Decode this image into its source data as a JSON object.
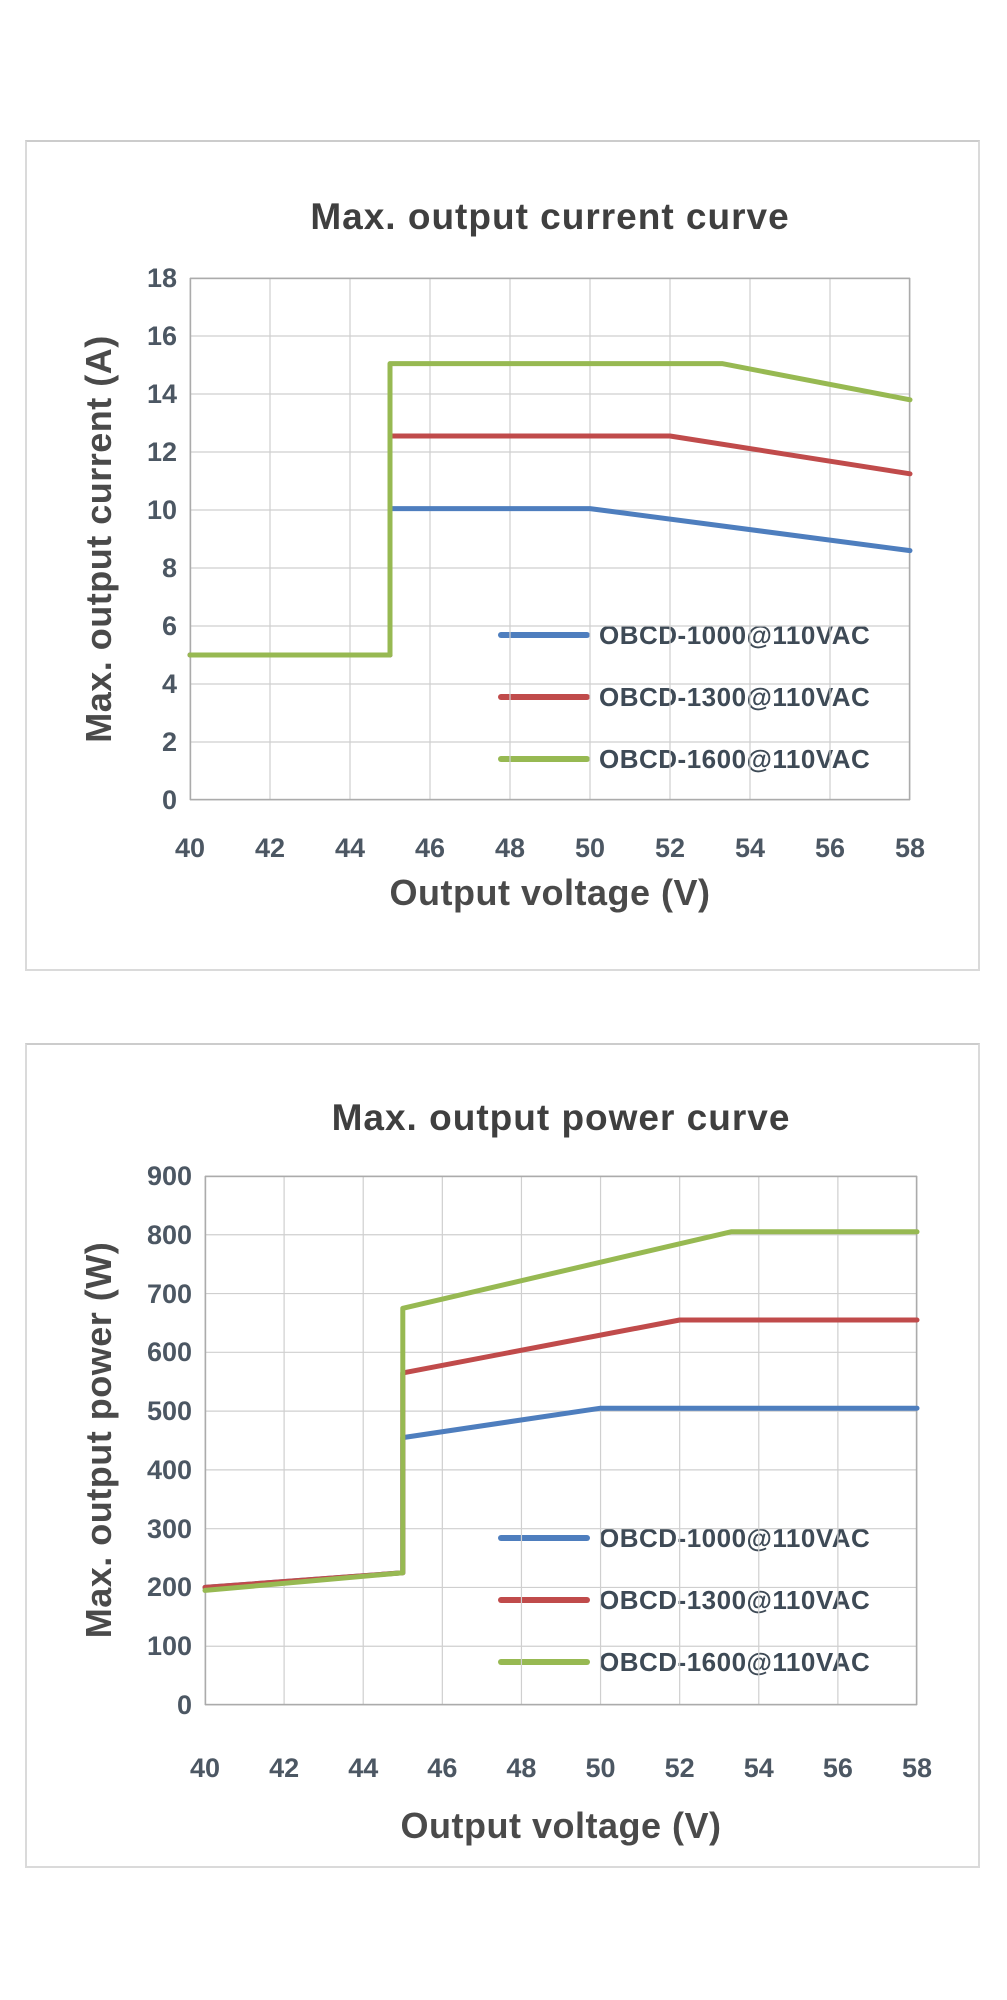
{
  "style": {
    "grid_color": "#cfcfcf",
    "plot_border_color": "#ababab",
    "series_blue": "#4E7EBE",
    "series_red": "#C04B4B",
    "series_green": "#97B952"
  },
  "chart_data": [
    {
      "type": "line",
      "title": "Max. output current curve",
      "x_axis_title": "Output voltage (V)",
      "y_axis_title": "Max. output current (A)",
      "xlim": [
        40,
        58
      ],
      "ylim": [
        0,
        18
      ],
      "x_ticks": [
        40,
        42,
        44,
        46,
        48,
        50,
        52,
        54,
        56,
        58
      ],
      "y_ticks": [
        0,
        2,
        4,
        6,
        8,
        10,
        12,
        14,
        16,
        18
      ],
      "grid": true,
      "legend_position": "inside-lower-right",
      "series": [
        {
          "name": "OBCD-1000@110VAC",
          "color": "#4E7EBE",
          "points": [
            [
              40,
              5
            ],
            [
              45,
              5
            ],
            [
              45,
              10.05
            ],
            [
              50,
              10.05
            ],
            [
              58,
              8.6
            ]
          ]
        },
        {
          "name": "OBCD-1300@110VAC",
          "color": "#C04B4B",
          "points": [
            [
              40,
              5
            ],
            [
              45,
              5
            ],
            [
              45,
              12.55
            ],
            [
              52,
              12.55
            ],
            [
              58,
              11.25
            ]
          ]
        },
        {
          "name": "OBCD-1600@110VAC",
          "color": "#97B952",
          "points": [
            [
              40,
              5
            ],
            [
              45,
              5
            ],
            [
              45,
              15.05
            ],
            [
              53.3,
              15.05
            ],
            [
              58,
              13.8
            ]
          ]
        }
      ]
    },
    {
      "type": "line",
      "title": "Max. output power curve",
      "x_axis_title": "Output voltage (V)",
      "y_axis_title": "Max. output power (W)",
      "xlim": [
        40,
        58
      ],
      "ylim": [
        0,
        900
      ],
      "x_ticks": [
        40,
        42,
        44,
        46,
        48,
        50,
        52,
        54,
        56,
        58
      ],
      "y_ticks": [
        0,
        100,
        200,
        300,
        400,
        500,
        600,
        700,
        800,
        900
      ],
      "grid": true,
      "legend_position": "inside-lower-right",
      "series": [
        {
          "name": "OBCD-1000@110VAC",
          "color": "#4E7EBE",
          "points": [
            [
              40,
              200
            ],
            [
              45,
              225
            ],
            [
              45,
              455
            ],
            [
              50,
              505
            ],
            [
              58,
              505
            ]
          ]
        },
        {
          "name": "OBCD-1300@110VAC",
          "color": "#C04B4B",
          "points": [
            [
              40,
              200
            ],
            [
              45,
              225
            ],
            [
              45,
              565
            ],
            [
              52,
              655
            ],
            [
              58,
              655
            ]
          ]
        },
        {
          "name": "OBCD-1600@110VAC",
          "color": "#97B952",
          "points": [
            [
              40,
              195
            ],
            [
              45,
              225
            ],
            [
              45,
              675
            ],
            [
              53.3,
              805
            ],
            [
              58,
              805
            ]
          ]
        }
      ]
    }
  ]
}
